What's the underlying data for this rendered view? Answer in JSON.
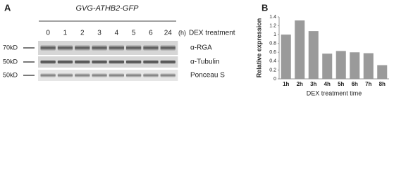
{
  "panel_a": {
    "label": "A",
    "title": "GVG-ATHB2-GFP",
    "lanes": [
      "0",
      "1",
      "2",
      "3",
      "4",
      "5",
      "6",
      "24"
    ],
    "unit": "(h)",
    "treatment": "DEX treatment",
    "rows": [
      {
        "marker": "70kD",
        "label": "α-RGA"
      },
      {
        "marker": "50kD",
        "label": "α-Tubulin"
      },
      {
        "marker": "50kD",
        "label": "Ponceau S"
      }
    ]
  },
  "panel_b_label": "B",
  "chart_data": {
    "type": "bar",
    "y_label": "Relative expression",
    "x_label": "DEX treatment time",
    "categories": [
      "1h",
      "2h",
      "3h",
      "4h",
      "5h",
      "6h",
      "7h",
      "8h"
    ],
    "values": [
      1.0,
      1.32,
      1.08,
      0.57,
      0.63,
      0.6,
      0.58,
      0.31
    ],
    "color": "#9a9a9a",
    "ylim": [
      0,
      1.4
    ],
    "yticks": [
      0,
      0.2,
      0.4,
      0.6,
      0.8,
      1,
      1.2,
      1.4
    ],
    "grid": false
  }
}
